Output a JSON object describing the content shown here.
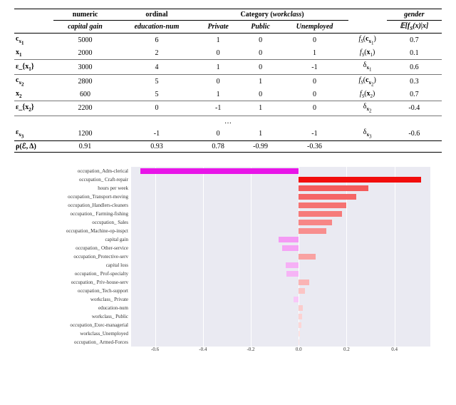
{
  "table": {
    "group_headers": {
      "numeric": "numeric",
      "ordinal": "ordinal",
      "category": "Category (workclass)",
      "gender": "gender"
    },
    "col_headers": {
      "capital_gain": "capital gain",
      "education_num": "education-num",
      "private": "Private",
      "public": "Public",
      "unemployed": "Unemployed",
      "expect": "𝔼[f_S(x)|x]"
    },
    "rows": [
      {
        "label": "c_{x₁}",
        "cg": "5000",
        "edu": "6",
        "priv": "1",
        "pub": "0",
        "un": "0",
        "rlab": "f_S(c_{x₁})",
        "val": "0.7"
      },
      {
        "label": "x₁",
        "cg": "2000",
        "edu": "2",
        "priv": "0",
        "pub": "0",
        "un": "1",
        "rlab": "f_S(x₁)",
        "val": "0.1"
      },
      {
        "label": "ε_{x₁}",
        "cg": "3000",
        "edu": "4",
        "priv": "1",
        "pub": "0",
        "un": "-1",
        "rlab": "δ_{x₁}",
        "val": "0.6",
        "sep": true
      },
      {
        "label": "c_{x₂}",
        "cg": "2800",
        "edu": "5",
        "priv": "0",
        "pub": "1",
        "un": "0",
        "rlab": "f_S(c_{x₂})",
        "val": "0.3",
        "sep": true
      },
      {
        "label": "x₂",
        "cg": "600",
        "edu": "5",
        "priv": "1",
        "pub": "0",
        "un": "0",
        "rlab": "f_S(x₂)",
        "val": "0.7"
      },
      {
        "label": "ε_{x₂}",
        "cg": "2200",
        "edu": "0",
        "priv": "-1",
        "pub": "1",
        "un": "0",
        "rlab": "δ_{x₂}",
        "val": "-0.4",
        "sep": true
      },
      {
        "label": "…",
        "ellipsis": true
      },
      {
        "label": "ε_{x₃}",
        "cg": "1200",
        "edu": "-1",
        "priv": "0",
        "pub": "1",
        "un": "-1",
        "rlab": "δ_{x₃}",
        "val": "-0.6"
      },
      {
        "label": "ρ(ℰ, Δ)",
        "cg": "0.91",
        "edu": "0.93",
        "priv": "0.78",
        "pub": "-0.99",
        "un": "-0.36",
        "rlab": "",
        "val": "",
        "final": true
      }
    ]
  },
  "chart": {
    "type": "bar-horizontal",
    "background": "#eaeaf2",
    "grid_color": "#ffffff",
    "xmin": -0.7,
    "xmax": 0.55,
    "xticks": [
      -0.6,
      -0.4,
      -0.2,
      0.0,
      0.2,
      0.4
    ],
    "bars": [
      {
        "label": "occupation_Adm-clerical",
        "value": -0.66,
        "color": "#e815e8"
      },
      {
        "label": "occupation_ Craft-repair",
        "value": 0.51,
        "color": "#f20d0d"
      },
      {
        "label": "hours per week",
        "value": 0.29,
        "color": "#f45a5a"
      },
      {
        "label": "occupation_Transport-moving",
        "value": 0.24,
        "color": "#f56666"
      },
      {
        "label": "occupation_Handlers-cleaners",
        "value": 0.2,
        "color": "#f57272"
      },
      {
        "label": "occupation_ Farming-fishing",
        "value": 0.18,
        "color": "#f67a7a"
      },
      {
        "label": "occupation_ Sales",
        "value": 0.14,
        "color": "#f78686"
      },
      {
        "label": "occupation_Machine-op-inspct",
        "value": 0.115,
        "color": "#f88e8e"
      },
      {
        "label": "capital gain",
        "value": -0.085,
        "color": "#f49af4"
      },
      {
        "label": "occupation_ Other-service",
        "value": -0.07,
        "color": "#f5a4f5"
      },
      {
        "label": "occupation_Protective-serv",
        "value": 0.07,
        "color": "#f9a2a2"
      },
      {
        "label": "capital loss",
        "value": -0.055,
        "color": "#f6b0f6"
      },
      {
        "label": "occupation_ Prof-specialty",
        "value": -0.05,
        "color": "#f6b4f6"
      },
      {
        "label": "occupation_ Priv-house-serv",
        "value": 0.045,
        "color": "#fab4b4"
      },
      {
        "label": "occupation_Tech-support",
        "value": 0.025,
        "color": "#fbc4c4"
      },
      {
        "label": "workclass_ Private",
        "value": -0.02,
        "color": "#f8c8f8"
      },
      {
        "label": "education-num",
        "value": 0.018,
        "color": "#fbcccc"
      },
      {
        "label": "workclass_ Public",
        "value": 0.014,
        "color": "#fcd2d2"
      },
      {
        "label": "occupation_Exec-managerial",
        "value": 0.012,
        "color": "#fcd6d6"
      },
      {
        "label": "workclass_Unemployed",
        "value": 0.006,
        "color": "#fde2e2"
      },
      {
        "label": "occupation_ Armed-Forces",
        "value": 0.003,
        "color": "#fde8e8"
      }
    ]
  }
}
